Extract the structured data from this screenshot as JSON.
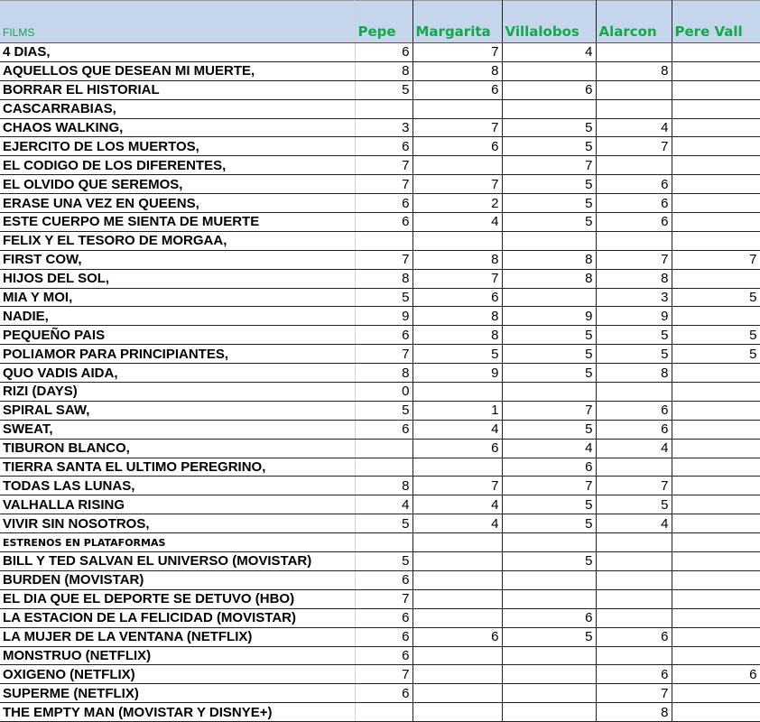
{
  "header": {
    "films": "FILMS",
    "reviewers": [
      "Pepe",
      "Margarita",
      "Villalobos",
      "Alarcon",
      "Pere Vall"
    ]
  },
  "colors": {
    "header_bg": "#c5d6ec",
    "header_text": "#14a84b"
  },
  "rows": [
    {
      "title": "4 DIAS,",
      "scores": [
        "6",
        "7",
        "4",
        "",
        ""
      ]
    },
    {
      "title": "AQUELLOS QUE DESEAN MI MUERTE,",
      "scores": [
        "8",
        "8",
        "",
        "8",
        ""
      ]
    },
    {
      "title": "BORRAR EL HISTORIAL",
      "scores": [
        "5",
        "6",
        "6",
        "",
        ""
      ]
    },
    {
      "title": "CASCARRABIAS,",
      "scores": [
        "",
        "",
        "",
        "",
        ""
      ]
    },
    {
      "title": "CHAOS WALKING,",
      "scores": [
        "3",
        "7",
        "5",
        "4",
        ""
      ]
    },
    {
      "title": "EJERCITO DE LOS MUERTOS,",
      "scores": [
        "6",
        "6",
        "5",
        "7",
        ""
      ]
    },
    {
      "title": "EL CODIGO DE LOS DIFERENTES,",
      "scores": [
        "7",
        "",
        "7",
        "",
        ""
      ]
    },
    {
      "title": "EL OLVIDO QUE SEREMOS,",
      "scores": [
        "7",
        "7",
        "5",
        "6",
        ""
      ]
    },
    {
      "title": "ERASE UNA VEZ EN QUEENS,",
      "scores": [
        "6",
        "2",
        "5",
        "6",
        ""
      ]
    },
    {
      "title": "ESTE CUERPO ME SIENTA DE MUERTE",
      "scores": [
        "6",
        "4",
        "5",
        "6",
        ""
      ]
    },
    {
      "title": "FELIX Y EL TESORO DE MORGAA,",
      "scores": [
        "",
        "",
        "",
        "",
        ""
      ]
    },
    {
      "title": "FIRST COW,",
      "scores": [
        "7",
        "8",
        "8",
        "7",
        "7"
      ]
    },
    {
      "title": "HIJOS DEL SOL,",
      "scores": [
        "8",
        "7",
        "8",
        "8",
        ""
      ]
    },
    {
      "title": "MIA Y MOI,",
      "scores": [
        "5",
        "6",
        "",
        "3",
        "5"
      ]
    },
    {
      "title": "NADIE,",
      "scores": [
        "9",
        "8",
        "9",
        "9",
        ""
      ]
    },
    {
      "title": "PEQUEÑO PAIS",
      "scores": [
        "6",
        "8",
        "5",
        "5",
        "5"
      ]
    },
    {
      "title": "POLIAMOR PARA PRINCIPIANTES,",
      "scores": [
        "7",
        "5",
        "5",
        "5",
        "5"
      ]
    },
    {
      "title": "QUO VADIS AIDA,",
      "scores": [
        "8",
        "9",
        "5",
        "8",
        ""
      ]
    },
    {
      "title": "RIZI (DAYS)",
      "scores": [
        "0",
        "",
        "",
        "",
        ""
      ]
    },
    {
      "title": "SPIRAL SAW,",
      "scores": [
        "5",
        "1",
        "7",
        "6",
        ""
      ]
    },
    {
      "title": "SWEAT,",
      "scores": [
        "6",
        "4",
        "5",
        "6",
        ""
      ]
    },
    {
      "title": "TIBURON BLANCO,",
      "scores": [
        "",
        "6",
        "4",
        "4",
        ""
      ]
    },
    {
      "title": "TIERRA SANTA EL ULTIMO PEREGRINO,",
      "scores": [
        "",
        "",
        "6",
        "",
        ""
      ]
    },
    {
      "title": "TODAS LAS LUNAS,",
      "scores": [
        "8",
        "7",
        "7",
        "7",
        ""
      ]
    },
    {
      "title": "VALHALLA RISING",
      "scores": [
        "4",
        "4",
        "5",
        "5",
        ""
      ]
    },
    {
      "title": "VIVIR SIN NOSOTROS,",
      "scores": [
        "5",
        "4",
        "5",
        "4",
        ""
      ]
    },
    {
      "title": "ESTRENOS EN PLATAFORMAS",
      "section": true,
      "scores": [
        "",
        "",
        "",
        "",
        ""
      ]
    },
    {
      "title": "BILL Y TED SALVAN EL UNIVERSO (MOVISTAR)",
      "scores": [
        "5",
        "",
        "5",
        "",
        ""
      ]
    },
    {
      "title": "BURDEN (MOVISTAR)",
      "scores": [
        "6",
        "",
        "",
        "",
        ""
      ]
    },
    {
      "title": "EL DIA QUE EL DEPORTE SE DETUVO (HBO)",
      "scores": [
        "7",
        "",
        "",
        "",
        ""
      ]
    },
    {
      "title": "LA ESTACION DE LA FELICIDAD (MOVISTAR)",
      "scores": [
        "6",
        "",
        "6",
        "",
        ""
      ]
    },
    {
      "title": "LA MUJER DE LA VENTANA (NETFLIX)",
      "scores": [
        "6",
        "6",
        "5",
        "6",
        ""
      ]
    },
    {
      "title": "MONSTRUO (NETFLIX)",
      "scores": [
        "6",
        "",
        "",
        "",
        ""
      ]
    },
    {
      "title": "OXIGENO (NETFLIX)",
      "scores": [
        "7",
        "",
        "",
        "6",
        "6"
      ]
    },
    {
      "title": "SUPERME (NETFLIX)",
      "scores": [
        "6",
        "",
        "",
        "7",
        ""
      ]
    },
    {
      "title": "THE EMPTY MAN (MOVISTAR Y DISNYE+)",
      "scores": [
        "",
        "",
        "",
        "8",
        ""
      ]
    }
  ]
}
